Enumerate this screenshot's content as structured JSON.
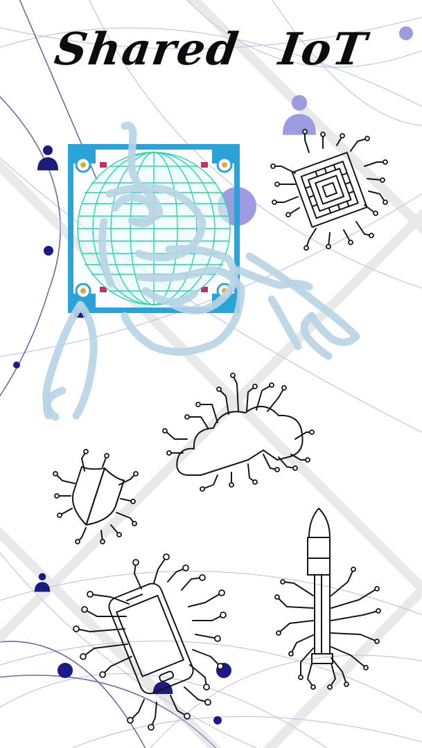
{
  "poster": {
    "title": "Shared IoT"
  },
  "colors": {
    "network_line": "#7b7fd6",
    "network_node": "#1a1a8c",
    "person": "#1c1c7e",
    "person_light": "#9e9ce0",
    "globe_frame": "#2aa3d8",
    "globe_grid": "#22d6b0",
    "robot_sketch": "#b8d4e6",
    "line_art": "#151515"
  },
  "icons": [
    "person-icon",
    "chip-icon",
    "globe-chip-icon",
    "robot-hand-icon",
    "cloud-circuit-icon",
    "shield-circuit-icon",
    "phone-circuit-icon",
    "rocket-circuit-icon"
  ]
}
